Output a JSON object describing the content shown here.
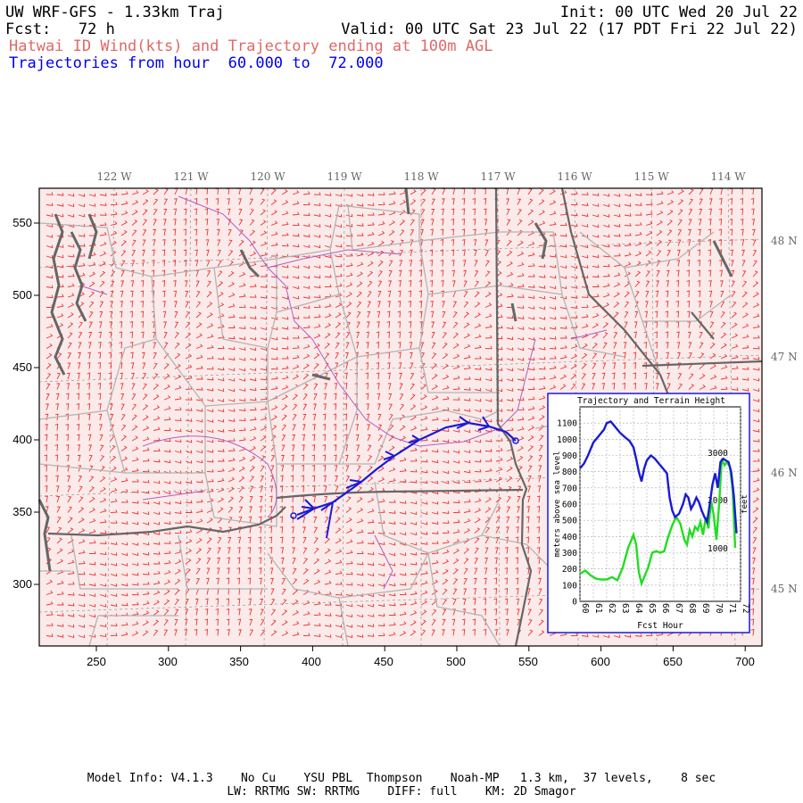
{
  "header": {
    "model_title": "UW WRF-GFS - 1.33km Traj",
    "init": "Init: 00 UTC Wed 20 Jul 22",
    "fcst": "Fcst:   72 h",
    "valid": "Valid: 00 UTC Sat 23 Jul 22 (17 PDT Fri 22 Jul 22)",
    "product": "Hatwai ID Wind(kts) and Trajectory ending at 100m AGL",
    "traj_hours": "Trajectories from hour  60.000 to  72.000"
  },
  "colors": {
    "product_text": "#e06868",
    "traj_text": "#0000ee",
    "wind_barbs": "#ee3333",
    "map_bg": "#fbeaea",
    "trajectory": "#1a1ad6",
    "terrain": "#22dd22",
    "state_border": "#666666",
    "county_border": "#b4b4b4",
    "water_line": "#b060c0"
  },
  "map": {
    "top_lon_labels": [
      "122 W",
      "121 W",
      "120 W",
      "119 W",
      "118 W",
      "117 W",
      "116 W",
      "115 W",
      "114 W"
    ],
    "right_lat_labels": [
      "48 N",
      "47 N",
      "46 N",
      "45 N"
    ],
    "x_tick_labels": [
      "250",
      "300",
      "350",
      "400",
      "450",
      "500",
      "550",
      "600",
      "650",
      "700"
    ],
    "y_tick_labels": [
      "550",
      "500",
      "450",
      "400",
      "350",
      "300"
    ]
  },
  "inset": {
    "title": "Trajectory and Terrain Height",
    "ylabel_left": "meters above sea level",
    "ylabel_right": "feet",
    "xlabel": "Fcst Hour",
    "left_ticks": [
      "1100",
      "1000",
      "900",
      "800",
      "700",
      "600",
      "500",
      "400",
      "300",
      "200",
      "100",
      "0"
    ],
    "right_ticks": [
      "3000",
      "2000",
      "1000"
    ],
    "x_ticks": [
      "60",
      "61",
      "62",
      "63",
      "64",
      "65",
      "66",
      "67",
      "68",
      "69",
      "70",
      "71",
      "72"
    ],
    "trajectory_height_m": [
      [
        60.0,
        820
      ],
      [
        60.3,
        850
      ],
      [
        60.6,
        900
      ],
      [
        61.0,
        980
      ],
      [
        61.4,
        1020
      ],
      [
        61.8,
        1060
      ],
      [
        62.0,
        1100
      ],
      [
        62.3,
        1110
      ],
      [
        62.6,
        1080
      ],
      [
        63.0,
        1040
      ],
      [
        63.4,
        1010
      ],
      [
        63.7,
        990
      ],
      [
        64.0,
        950
      ],
      [
        64.2,
        880
      ],
      [
        64.4,
        800
      ],
      [
        64.6,
        740
      ],
      [
        64.8,
        820
      ],
      [
        65.0,
        870
      ],
      [
        65.3,
        900
      ],
      [
        65.6,
        880
      ],
      [
        65.9,
        850
      ],
      [
        66.2,
        820
      ],
      [
        66.5,
        790
      ],
      [
        66.7,
        640
      ],
      [
        66.9,
        560
      ],
      [
        67.1,
        520
      ],
      [
        67.4,
        540
      ],
      [
        67.7,
        600
      ],
      [
        67.9,
        660
      ],
      [
        68.1,
        640
      ],
      [
        68.3,
        570
      ],
      [
        68.5,
        600
      ],
      [
        68.7,
        640
      ],
      [
        68.9,
        610
      ],
      [
        69.1,
        560
      ],
      [
        69.3,
        520
      ],
      [
        69.5,
        490
      ],
      [
        69.7,
        600
      ],
      [
        69.9,
        720
      ],
      [
        70.1,
        790
      ],
      [
        70.3,
        700
      ],
      [
        70.5,
        860
      ],
      [
        70.7,
        880
      ],
      [
        70.9,
        870
      ],
      [
        71.1,
        860
      ],
      [
        71.3,
        800
      ],
      [
        71.5,
        650
      ],
      [
        71.7,
        420
      ]
    ],
    "terrain_height_m": [
      [
        60.0,
        170
      ],
      [
        60.4,
        190
      ],
      [
        60.8,
        160
      ],
      [
        61.2,
        140
      ],
      [
        61.6,
        135
      ],
      [
        62.0,
        135
      ],
      [
        62.4,
        150
      ],
      [
        62.8,
        130
      ],
      [
        63.2,
        210
      ],
      [
        63.6,
        330
      ],
      [
        64.0,
        410
      ],
      [
        64.2,
        350
      ],
      [
        64.4,
        180
      ],
      [
        64.6,
        110
      ],
      [
        64.8,
        150
      ],
      [
        65.1,
        210
      ],
      [
        65.4,
        300
      ],
      [
        65.7,
        310
      ],
      [
        66.0,
        300
      ],
      [
        66.3,
        310
      ],
      [
        66.6,
        400
      ],
      [
        66.9,
        470
      ],
      [
        67.2,
        520
      ],
      [
        67.5,
        480
      ],
      [
        67.8,
        380
      ],
      [
        68.0,
        350
      ],
      [
        68.2,
        440
      ],
      [
        68.4,
        400
      ],
      [
        68.6,
        460
      ],
      [
        68.8,
        440
      ],
      [
        69.0,
        490
      ],
      [
        69.2,
        410
      ],
      [
        69.4,
        520
      ],
      [
        69.6,
        450
      ],
      [
        69.8,
        620
      ],
      [
        70.0,
        530
      ],
      [
        70.2,
        380
      ],
      [
        70.4,
        600
      ],
      [
        70.6,
        880
      ],
      [
        70.8,
        840
      ],
      [
        71.0,
        860
      ],
      [
        71.2,
        830
      ],
      [
        71.4,
        700
      ],
      [
        71.6,
        330
      ]
    ]
  },
  "footer": {
    "line1": "Model Info: V4.1.3    No Cu    YSU PBL  Thompson    Noah-MP   1.3 km,  37 levels,    8 sec",
    "line2": "LW: RRTMG SW: RRTMG    DIFF: full    KM: 2D Smagor"
  }
}
